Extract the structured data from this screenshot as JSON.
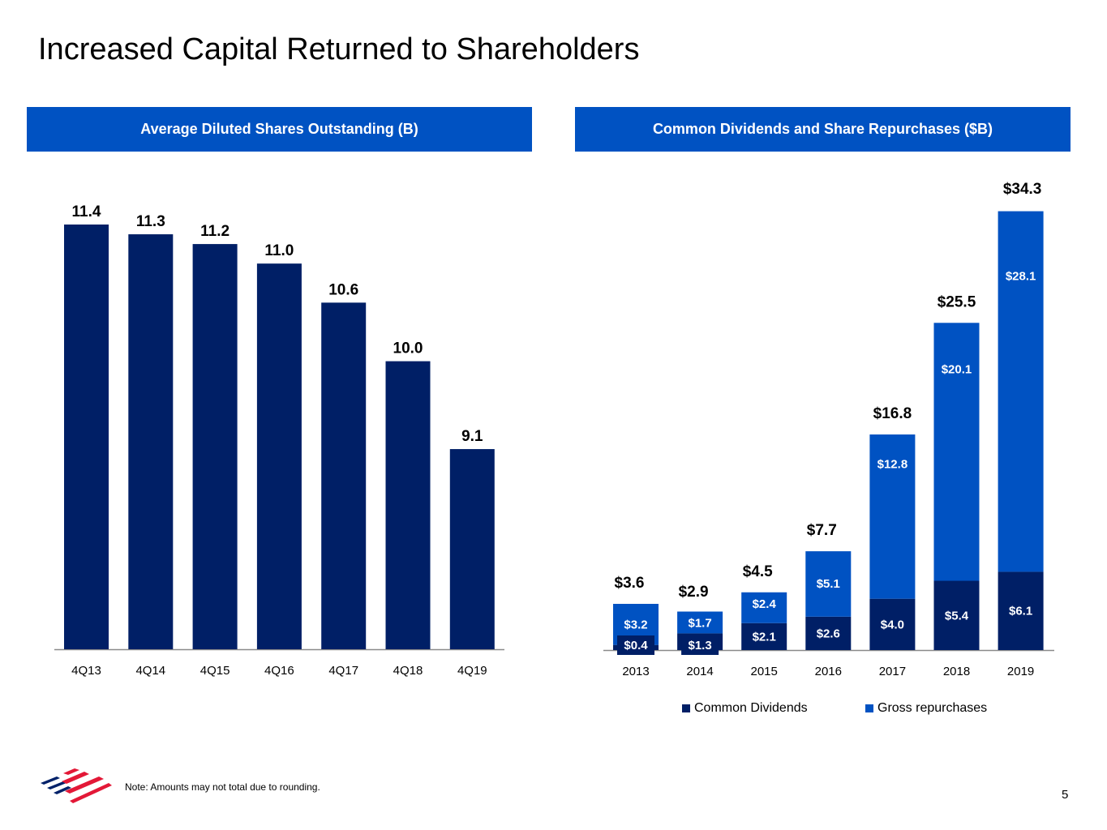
{
  "page": {
    "title": "Increased Capital Returned to Shareholders",
    "note": "Note: Amounts may not total due to rounding.",
    "page_number": "5",
    "logo": "bank-flag-logo-icon"
  },
  "colors": {
    "banner": "#0052c2",
    "dark_navy": "#001f66",
    "bright_blue": "#0052c2",
    "axis": "#8a8a8a",
    "logo_blue": "#012169",
    "logo_red": "#e31837"
  },
  "chart_data": [
    {
      "type": "bar",
      "title": "Average Diluted Shares Outstanding (B)",
      "xlabel": "",
      "ylabel": "",
      "categories": [
        "4Q13",
        "4Q14",
        "4Q15",
        "4Q16",
        "4Q17",
        "4Q18",
        "4Q19"
      ],
      "values": [
        11.4,
        11.3,
        11.2,
        11.0,
        10.6,
        10.0,
        9.1
      ],
      "data_labels": [
        "11.4",
        "11.3",
        "11.2",
        "11.0",
        "10.6",
        "10.0",
        "9.1"
      ],
      "ylim": [
        7.05,
        11.4
      ],
      "grid": false,
      "legend": "none"
    },
    {
      "type": "bar",
      "stacked": true,
      "title": "Common Dividends and Share Repurchases ($B)",
      "xlabel": "",
      "ylabel": "",
      "categories": [
        "2013",
        "2014",
        "2015",
        "2016",
        "2017",
        "2018",
        "2019"
      ],
      "series": [
        {
          "name": "Common Dividends",
          "values": [
            0.4,
            1.3,
            2.1,
            2.6,
            4.0,
            5.4,
            6.1
          ],
          "labels": [
            "$0.4",
            "$1.3",
            "$2.1",
            "$2.6",
            "$4.0",
            "$5.4",
            "$6.1"
          ]
        },
        {
          "name": "Gross repurchases",
          "values": [
            3.2,
            1.7,
            2.4,
            5.1,
            12.8,
            20.1,
            28.1
          ],
          "labels": [
            "$3.2",
            "$1.7",
            "$2.4",
            "$5.1",
            "$12.8",
            "$20.1",
            "$28.1"
          ]
        }
      ],
      "totals": [
        3.6,
        2.9,
        4.5,
        7.7,
        16.8,
        25.5,
        34.3
      ],
      "total_labels": [
        "$3.6",
        "$2.9",
        "$4.5",
        "$7.7",
        "$16.8",
        "$25.5",
        "$34.3"
      ],
      "ylim": [
        0,
        34.3
      ],
      "grid": false,
      "legend": "bottom"
    }
  ]
}
